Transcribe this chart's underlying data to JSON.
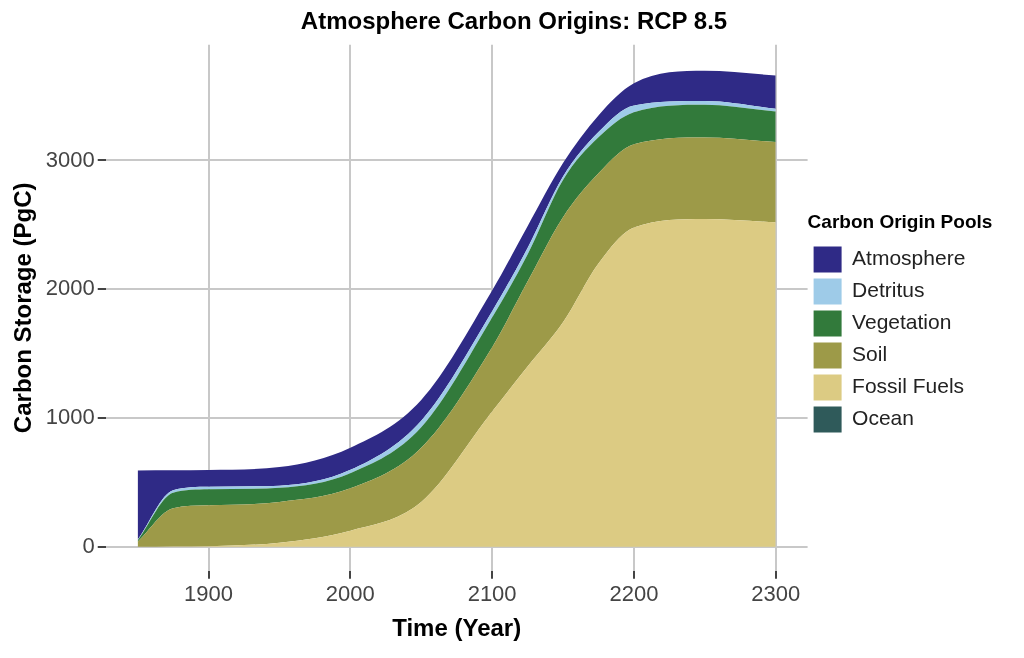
{
  "chart_data": {
    "type": "area",
    "title": "Atmosphere Carbon Origins: RCP 8.5",
    "xlabel": "Time (Year)",
    "ylabel": "Carbon Storage (PgC)",
    "legend_title": "Carbon Origin Pools",
    "legend": "right",
    "grid": true,
    "stacked": true,
    "x": [
      1850,
      1875,
      1900,
      1950,
      2000,
      2050,
      2100,
      2125,
      2150,
      2175,
      2200,
      2250,
      2300
    ],
    "xlim": [
      1827.5,
      2322.5
    ],
    "xticks": [
      1900,
      2000,
      2100,
      2200,
      2300
    ],
    "ylim": [
      -186,
      3898
    ],
    "yticks": [
      0,
      1000,
      2000,
      3000
    ],
    "series": [
      {
        "name": "Ocean",
        "color": "#2f5a5a",
        "values": [
          null,
          null,
          null,
          null,
          null,
          null,
          null,
          null,
          null,
          null,
          null,
          null,
          null
        ]
      },
      {
        "name": "Fossil Fuels",
        "color": "#dccb83",
        "values": [
          0,
          2,
          5,
          32,
          125,
          348,
          1050,
          1400,
          1743,
          2200,
          2480,
          2546,
          2520
        ]
      },
      {
        "name": "Soil",
        "color": "#9d9a48",
        "values": [
          40,
          298,
          317,
          316,
          329,
          421,
          500,
          660,
          816,
          700,
          645,
          632,
          623
        ]
      },
      {
        "name": "Vegetation",
        "color": "#327a3b",
        "values": [
          10,
          120,
          125,
          111,
          118,
          159,
          230,
          210,
          290,
          280,
          250,
          255,
          237
        ]
      },
      {
        "name": "Detritus",
        "color": "#9ecbe8",
        "values": [
          5,
          20,
          20,
          16,
          26,
          52,
          50,
          50,
          26,
          40,
          52,
          28,
          21
        ]
      },
      {
        "name": "Atmosphere",
        "color": "#2f2a86",
        "values": [
          538,
          155,
          130,
          144,
          171,
          160,
          160,
          170,
          105,
          130,
          172,
          235,
          259
        ]
      }
    ]
  }
}
